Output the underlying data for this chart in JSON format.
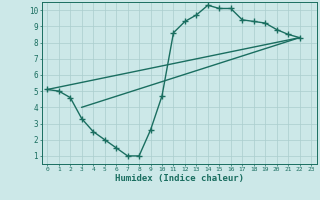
{
  "line1_x": [
    0,
    1,
    2,
    3,
    4,
    5,
    6,
    7,
    8,
    9,
    10,
    11,
    12,
    13,
    14,
    15,
    16,
    17,
    18,
    19,
    20,
    21,
    22
  ],
  "line1_y": [
    5.1,
    5.0,
    4.6,
    3.3,
    2.5,
    2.0,
    1.5,
    1.0,
    1.0,
    2.6,
    4.7,
    8.6,
    9.3,
    9.7,
    10.3,
    10.1,
    10.1,
    9.4,
    9.3,
    9.2,
    8.8,
    8.5,
    8.3
  ],
  "line2_x": [
    0,
    22
  ],
  "line2_y": [
    5.1,
    8.3
  ],
  "line3_x": [
    3,
    22
  ],
  "line3_y": [
    4.0,
    8.3
  ],
  "line_color": "#1a6e60",
  "bg_color": "#cce8e8",
  "grid_color": "#aacece",
  "xlabel": "Humidex (Indice chaleur)",
  "xlim": [
    -0.5,
    23.5
  ],
  "ylim": [
    0.5,
    10.5
  ],
  "xticks": [
    0,
    1,
    2,
    3,
    4,
    5,
    6,
    7,
    8,
    9,
    10,
    11,
    12,
    13,
    14,
    15,
    16,
    17,
    18,
    19,
    20,
    21,
    22,
    23
  ],
  "yticks": [
    1,
    2,
    3,
    4,
    5,
    6,
    7,
    8,
    9,
    10
  ],
  "marker": "+",
  "markersize": 4,
  "linewidth": 1.0
}
